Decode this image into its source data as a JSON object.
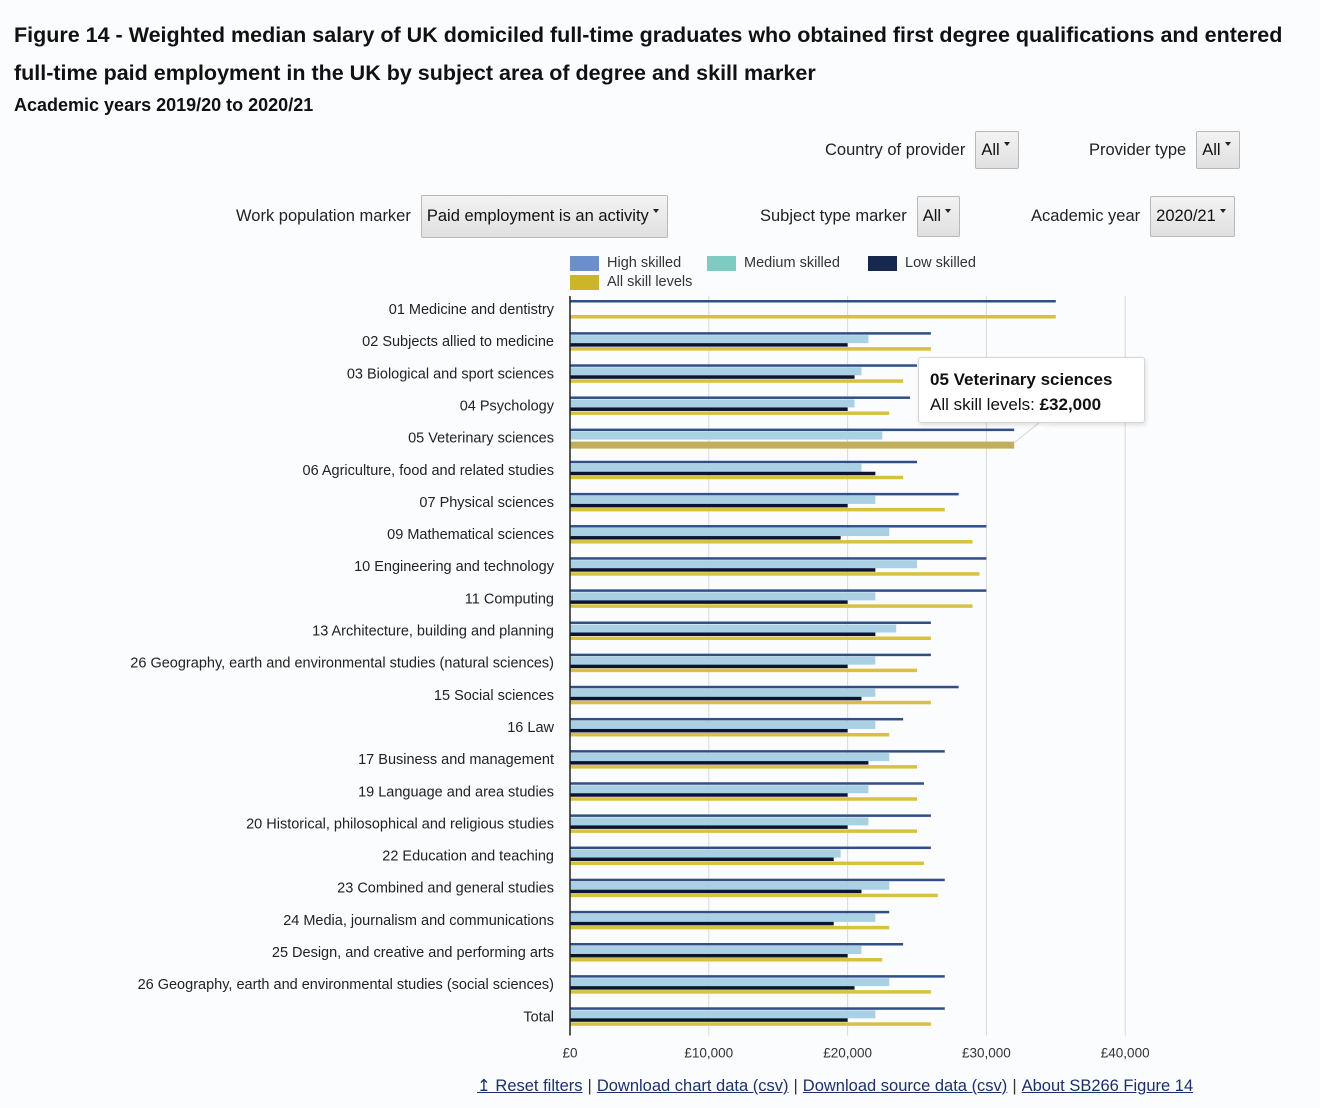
{
  "header": {
    "title": "Figure 14 - Weighted median salary of UK domiciled full-time graduates who obtained first degree qualifications and entered full-time paid employment in the UK by subject area of degree and skill marker",
    "subtitle": "Academic years 2019/20 to 2020/21"
  },
  "filters": {
    "country_of_provider": {
      "label": "Country of provider",
      "value": "All"
    },
    "provider_type": {
      "label": "Provider type",
      "value": "All"
    },
    "work_population_marker": {
      "label": "Work population marker",
      "value": "Paid employment is an activity"
    },
    "subject_type_marker": {
      "label": "Subject type marker",
      "value": "All"
    },
    "academic_year": {
      "label": "Academic year",
      "value": "2020/21"
    }
  },
  "tooltip": {
    "title": "05 Veterinary sciences",
    "series": "All skill levels:",
    "value": "£32,000"
  },
  "footer": {
    "reset": "↥ Reset filters",
    "download_chart": "Download chart data (csv)",
    "download_source": "Download source data (csv)",
    "about": "About SB266 Figure 14",
    "separator": "|"
  },
  "colors": {
    "high": "#4a6fa8",
    "medium": "#a9cfe0",
    "low": "#0d1a3a",
    "all": "#d8bf3e",
    "highlight": "#c2ad5a"
  },
  "chart_data": {
    "type": "bar",
    "orientation": "horizontal",
    "title": "Weighted median salary by subject area of degree and skill marker",
    "xlabel": "",
    "ylabel": "",
    "xlim": [
      0,
      42000
    ],
    "xticks": [
      0,
      10000,
      20000,
      30000,
      40000
    ],
    "xtick_labels": [
      "£0",
      "£10,000",
      "£20,000",
      "£30,000",
      "£40,000"
    ],
    "grid": true,
    "legend_position": "top",
    "categories": [
      "01 Medicine and dentistry",
      "02 Subjects allied to medicine",
      "03 Biological and sport sciences",
      "04 Psychology",
      "05 Veterinary sciences",
      "06 Agriculture, food and related studies",
      "07 Physical sciences",
      "09 Mathematical sciences",
      "10 Engineering and technology",
      "11 Computing",
      "13 Architecture, building and planning",
      "26 Geography, earth and environmental studies (natural sciences)",
      "15 Social sciences",
      "16 Law",
      "17 Business and management",
      "19 Language and area studies",
      "20 Historical, philosophical and religious studies",
      "22 Education and teaching",
      "23 Combined and general studies",
      "24 Media, journalism and communications",
      "25 Design, and creative and performing arts",
      "26 Geography, earth and environmental studies (social sciences)",
      "Total"
    ],
    "series": [
      {
        "name": "High skilled",
        "key": "high",
        "values": [
          35000,
          26000,
          25000,
          24500,
          32000,
          25000,
          28000,
          30000,
          30000,
          30000,
          26000,
          26000,
          28000,
          24000,
          27000,
          25500,
          26000,
          26000,
          27000,
          23000,
          24000,
          27000,
          27000
        ]
      },
      {
        "name": "Medium skilled",
        "key": "medium",
        "values": [
          null,
          21500,
          21000,
          20500,
          22500,
          21000,
          22000,
          23000,
          25000,
          22000,
          23500,
          22000,
          22000,
          22000,
          23000,
          21500,
          21500,
          19500,
          23000,
          22000,
          21000,
          23000,
          22000
        ]
      },
      {
        "name": "Low skilled",
        "key": "low",
        "values": [
          null,
          20000,
          20500,
          20000,
          null,
          22000,
          20000,
          19500,
          22000,
          20000,
          22000,
          20000,
          21000,
          20000,
          21500,
          20000,
          20000,
          19000,
          21000,
          19000,
          20000,
          20500,
          20000
        ]
      },
      {
        "name": "All skill levels",
        "key": "all",
        "values": [
          35000,
          26000,
          24000,
          23000,
          32000,
          24000,
          27000,
          29000,
          29500,
          29000,
          26000,
          25000,
          26000,
          23000,
          25000,
          25000,
          25000,
          25500,
          26500,
          23000,
          22500,
          26000,
          26000
        ]
      }
    ],
    "highlighted": {
      "category": "05 Veterinary sciences",
      "series": "All skill levels",
      "value": 32000
    }
  }
}
